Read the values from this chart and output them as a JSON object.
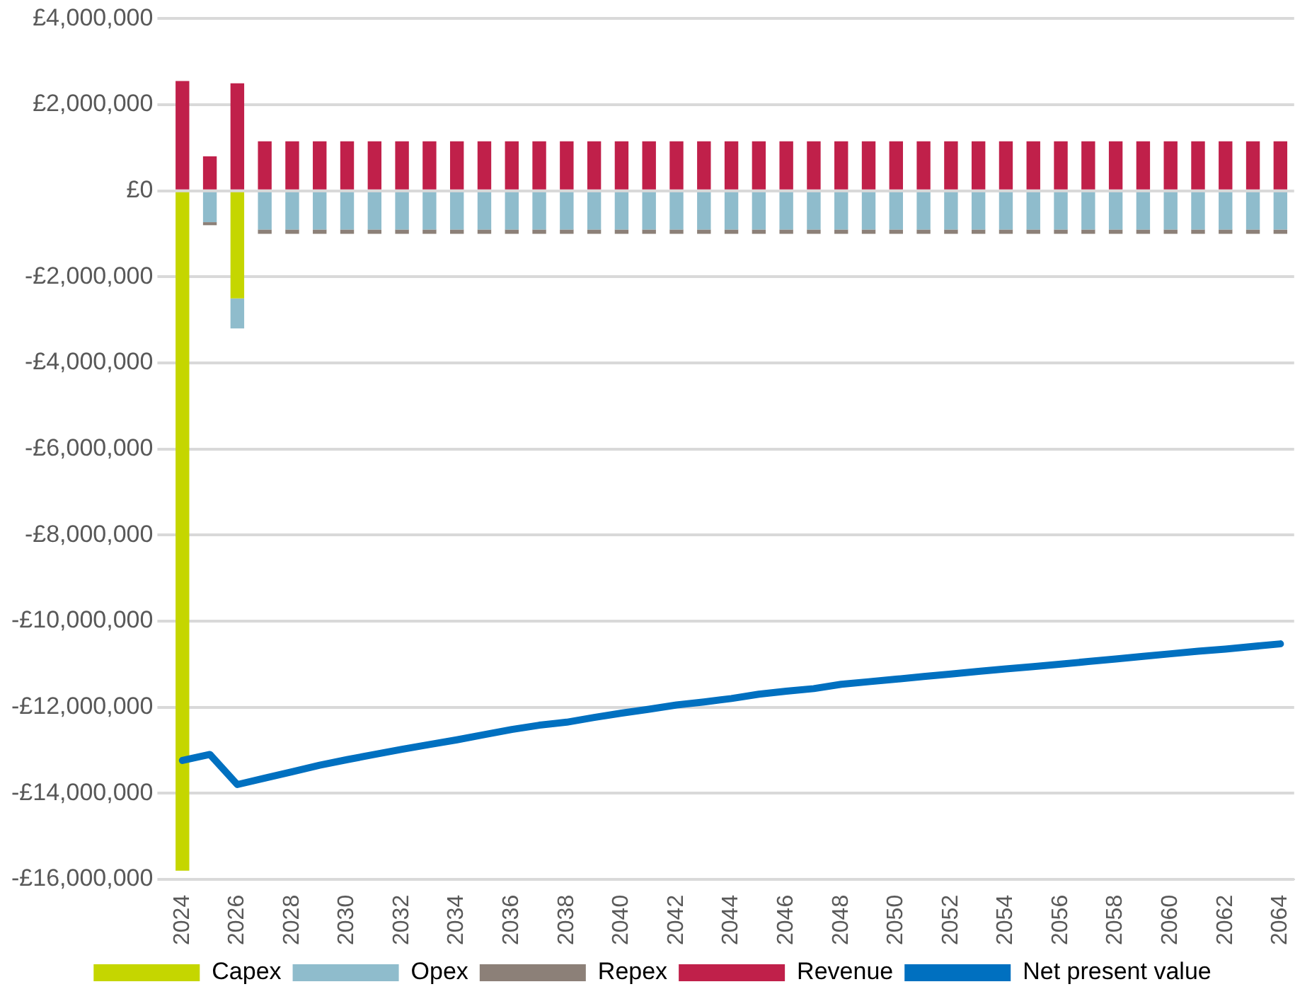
{
  "chart_data": {
    "type": "bar",
    "stacked": true,
    "categories": [
      "2024",
      null,
      "2026",
      null,
      "2028",
      null,
      "2030",
      null,
      "2032",
      null,
      "2034",
      null,
      "2036",
      null,
      "2038",
      null,
      "2040",
      null,
      "2042",
      null,
      "2044",
      null,
      "2046",
      null,
      "2048",
      null,
      "2050",
      null,
      "2052",
      null,
      "2054",
      null,
      "2056",
      null,
      "2058",
      null,
      "2060",
      null,
      "2062",
      null,
      "2064"
    ],
    "series": [
      {
        "name": "Capex",
        "color": "#c5d600",
        "values": [
          -15800000,
          0,
          -2500000,
          0,
          0,
          0,
          0,
          0,
          0,
          0,
          0,
          0,
          0,
          0,
          0,
          0,
          0,
          0,
          0,
          0,
          0,
          0,
          0,
          0,
          0,
          0,
          0,
          0,
          0,
          0,
          0,
          0,
          0,
          0,
          0,
          0,
          0,
          0,
          0,
          0,
          0
        ]
      },
      {
        "name": "Opex",
        "color": "#8fbccc",
        "values": [
          0,
          -730000,
          -700000,
          -900000,
          -900000,
          -900000,
          -900000,
          -900000,
          -900000,
          -900000,
          -900000,
          -900000,
          -900000,
          -900000,
          -900000,
          -900000,
          -900000,
          -900000,
          -900000,
          -900000,
          -900000,
          -900000,
          -900000,
          -900000,
          -900000,
          -900000,
          -900000,
          -900000,
          -900000,
          -900000,
          -900000,
          -900000,
          -900000,
          -900000,
          -900000,
          -900000,
          -900000,
          -900000,
          -900000,
          -900000,
          -900000
        ]
      },
      {
        "name": "Repex",
        "color": "#8c8078",
        "values": [
          0,
          -70000,
          0,
          -100000,
          -100000,
          -100000,
          -100000,
          -100000,
          -100000,
          -100000,
          -100000,
          -100000,
          -100000,
          -100000,
          -100000,
          -100000,
          -100000,
          -100000,
          -100000,
          -100000,
          -100000,
          -100000,
          -100000,
          -100000,
          -100000,
          -100000,
          -100000,
          -100000,
          -100000,
          -100000,
          -100000,
          -100000,
          -100000,
          -100000,
          -100000,
          -100000,
          -100000,
          -100000,
          -100000,
          -100000,
          -100000
        ]
      },
      {
        "name": "Revenue",
        "color": "#c0204a",
        "values": [
          2550000,
          800000,
          2500000,
          1150000,
          1150000,
          1150000,
          1150000,
          1150000,
          1150000,
          1150000,
          1150000,
          1150000,
          1150000,
          1150000,
          1150000,
          1150000,
          1150000,
          1150000,
          1150000,
          1150000,
          1150000,
          1150000,
          1150000,
          1150000,
          1150000,
          1150000,
          1150000,
          1150000,
          1150000,
          1150000,
          1150000,
          1150000,
          1150000,
          1150000,
          1150000,
          1150000,
          1150000,
          1150000,
          1150000,
          1150000,
          1150000
        ]
      },
      {
        "name": "Net present value",
        "type": "line",
        "color": "#0070c0",
        "values": [
          -13240000,
          -13100000,
          -13800000,
          -13650000,
          -13500000,
          -13350000,
          -13220000,
          -13100000,
          -12980000,
          -12870000,
          -12760000,
          -12640000,
          -12520000,
          -12420000,
          -12350000,
          -12240000,
          -12140000,
          -12050000,
          -11950000,
          -11880000,
          -11800000,
          -11700000,
          -11630000,
          -11570000,
          -11470000,
          -11410000,
          -11350000,
          -11290000,
          -11230000,
          -11170000,
          -11110000,
          -11060000,
          -11000000,
          -10940000,
          -10880000,
          -10820000,
          -10760000,
          -10700000,
          -10650000,
          -10590000,
          -10530000
        ]
      }
    ],
    "ylim": [
      -16000000,
      4000000
    ],
    "yticks": [
      {
        "value": -16000000,
        "label": "-£16,000,000"
      },
      {
        "value": -14000000,
        "label": "-£14,000,000"
      },
      {
        "value": -12000000,
        "label": "-£12,000,000"
      },
      {
        "value": -10000000,
        "label": "-£10,000,000"
      },
      {
        "value": -8000000,
        "label": "-£8,000,000"
      },
      {
        "value": -6000000,
        "label": "-£6,000,000"
      },
      {
        "value": -4000000,
        "label": "-£4,000,000"
      },
      {
        "value": -2000000,
        "label": "-£2,000,000"
      },
      {
        "value": 0,
        "label": "£0"
      },
      {
        "value": 2000000,
        "label": "£2,000,000"
      },
      {
        "value": 4000000,
        "label": "£4,000,000"
      }
    ],
    "grid": "y",
    "legend": "bottom",
    "marker": "none",
    "line_style": "solid"
  }
}
